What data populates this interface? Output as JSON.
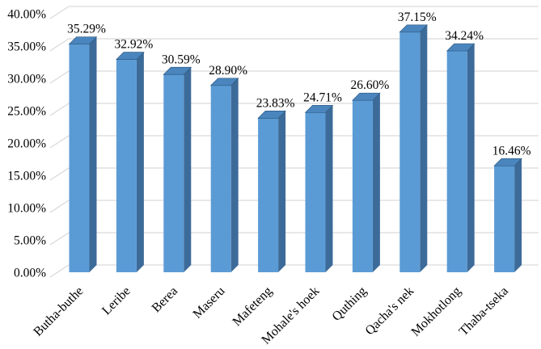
{
  "chart_data": {
    "type": "bar",
    "variant": "3d-column",
    "title": "",
    "xlabel": "",
    "ylabel": "",
    "categories": [
      "Butha-buthe",
      "Leribe",
      "Berea",
      "Maseru",
      "Mafeteng",
      "Mohale's hoek",
      "Quthing",
      "Qacha's nek",
      "Mokhotlong",
      "Thaba-tseka"
    ],
    "values": [
      35.29,
      32.92,
      30.59,
      28.9,
      23.83,
      24.71,
      26.6,
      37.15,
      34.24,
      16.46
    ],
    "data_labels": [
      "35.29%",
      "32.92%",
      "30.59%",
      "28.90%",
      "23.83%",
      "24.71%",
      "26.60%",
      "37.15%",
      "34.24%",
      "16.46%"
    ],
    "y_tick_values": [
      0,
      5,
      10,
      15,
      20,
      25,
      30,
      35,
      40
    ],
    "y_tick_labels": [
      "0.00%",
      "5.00%",
      "10.00%",
      "15.00%",
      "20.00%",
      "25.00%",
      "30.00%",
      "35.00%",
      "40.00%"
    ],
    "ylim": [
      0,
      40
    ],
    "grid": true,
    "legend": "none",
    "colors": {
      "bar_front": "#5B9BD5",
      "bar_top": "#4A85BE",
      "bar_side": "#3D6B99",
      "bar_edge": "#2E5A80",
      "gridline": "#D9D9D9",
      "text": "#000000",
      "background": "#FFFFFF"
    }
  }
}
